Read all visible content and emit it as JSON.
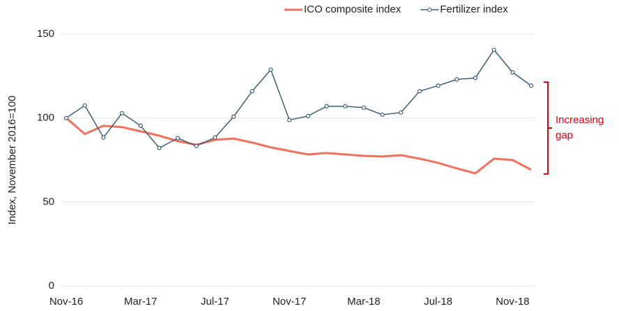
{
  "chart_data": {
    "type": "line",
    "y_label": "Index, November 2016=100",
    "annotation": "Increasing gap",
    "categories": [
      "Nov-16",
      null,
      null,
      null,
      "Mar-17",
      null,
      null,
      null,
      "Jul-17",
      null,
      null,
      null,
      "Nov-17",
      null,
      null,
      null,
      "Mar-18",
      null,
      null,
      null,
      "Jul-18",
      null,
      null,
      null,
      "Nov-18",
      null
    ],
    "series": [
      {
        "name": "ICO composite index",
        "color": "#f4705c",
        "marker": false,
        "values": [
          100,
          90.5,
          95.4,
          94.6,
          92.1,
          89.5,
          86.2,
          84.1,
          87,
          87.8,
          85.4,
          82.5,
          80.4,
          78.3,
          79.2,
          78.3,
          77.5,
          77.1,
          77.9,
          75.8,
          73.3,
          70,
          67.1,
          75.8,
          75,
          69.2
        ]
      },
      {
        "name": "Fertilizer index",
        "color": "#3e5e72",
        "marker": true,
        "values": [
          100,
          107.5,
          88.4,
          102.9,
          95.4,
          82.2,
          88,
          83.4,
          88.4,
          100.8,
          116,
          128.8,
          98.8,
          101.2,
          107,
          107,
          106.2,
          102,
          103.3,
          116,
          119.3,
          123,
          123.9,
          140.6,
          127.2,
          119.3
        ]
      }
    ],
    "ylim": [
      0,
      150
    ],
    "yticks": [
      0,
      50,
      100,
      150
    ],
    "grid": true,
    "legend": "top-right"
  }
}
